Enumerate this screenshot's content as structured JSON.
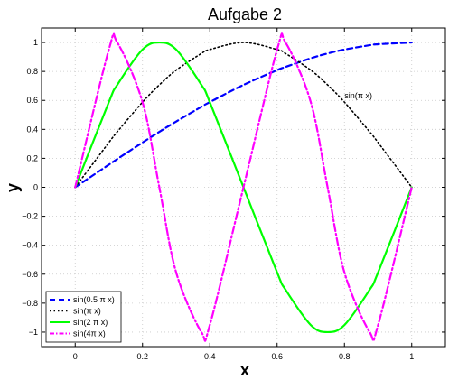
{
  "chart_data": {
    "type": "line",
    "title": "Aufgabe 2",
    "xlabel": "x",
    "ylabel": "y",
    "xlim": [
      -0.1,
      1.1
    ],
    "ylim": [
      -1.1,
      1.1
    ],
    "grid": true,
    "legend_position": "bottom-left",
    "x_ticks": [
      "0",
      "0.2",
      "0.4",
      "0.6",
      "0.8",
      "1"
    ],
    "y_ticks": [
      "−1",
      "−0.8",
      "−0.6",
      "−0.4",
      "−0.2",
      "0",
      "0.2",
      "0.4",
      "0.6",
      "0.8",
      "1"
    ],
    "x": [
      0,
      0.1,
      0.125,
      0.2,
      0.25,
      0.3,
      0.375,
      0.4,
      0.5,
      0.6,
      0.625,
      0.7,
      0.75,
      0.8,
      0.875,
      0.9,
      1.0
    ],
    "series": [
      {
        "name": "sin(0.5 π x)",
        "color": "#0000ff",
        "style": "dashed",
        "values": [
          0,
          0.156,
          0.195,
          0.309,
          0.383,
          0.454,
          0.556,
          0.588,
          0.707,
          0.809,
          0.831,
          0.891,
          0.924,
          0.951,
          0.981,
          0.988,
          1.0
        ]
      },
      {
        "name": " sin(π x)",
        "color": "#000000",
        "style": "dotted",
        "values": [
          0,
          0.309,
          0.383,
          0.588,
          0.707,
          0.809,
          0.924,
          0.951,
          1.0,
          0.951,
          0.924,
          0.809,
          0.707,
          0.588,
          0.383,
          0.309,
          0
        ]
      },
      {
        "name": "sin(2 π x)",
        "color": "#00ff00",
        "style": "solid",
        "values": [
          0,
          0.588,
          0.707,
          0.951,
          1.0,
          0.951,
          0.707,
          0.588,
          0,
          -0.588,
          -0.707,
          -0.951,
          -1.0,
          -0.951,
          -0.707,
          -0.588,
          0
        ]
      },
      {
        "name": "sin(4π x)",
        "color": "#ff00ff",
        "style": "dashdot",
        "values": [
          0,
          0.951,
          1.0,
          0.588,
          0,
          -0.588,
          -1.0,
          -0.951,
          0,
          0.951,
          1.0,
          0.588,
          0,
          -0.588,
          -1.0,
          -0.951,
          0
        ]
      }
    ],
    "annotations": [
      {
        "text": "sin(π x)",
        "x": 0.8,
        "y": 0.59
      }
    ]
  }
}
